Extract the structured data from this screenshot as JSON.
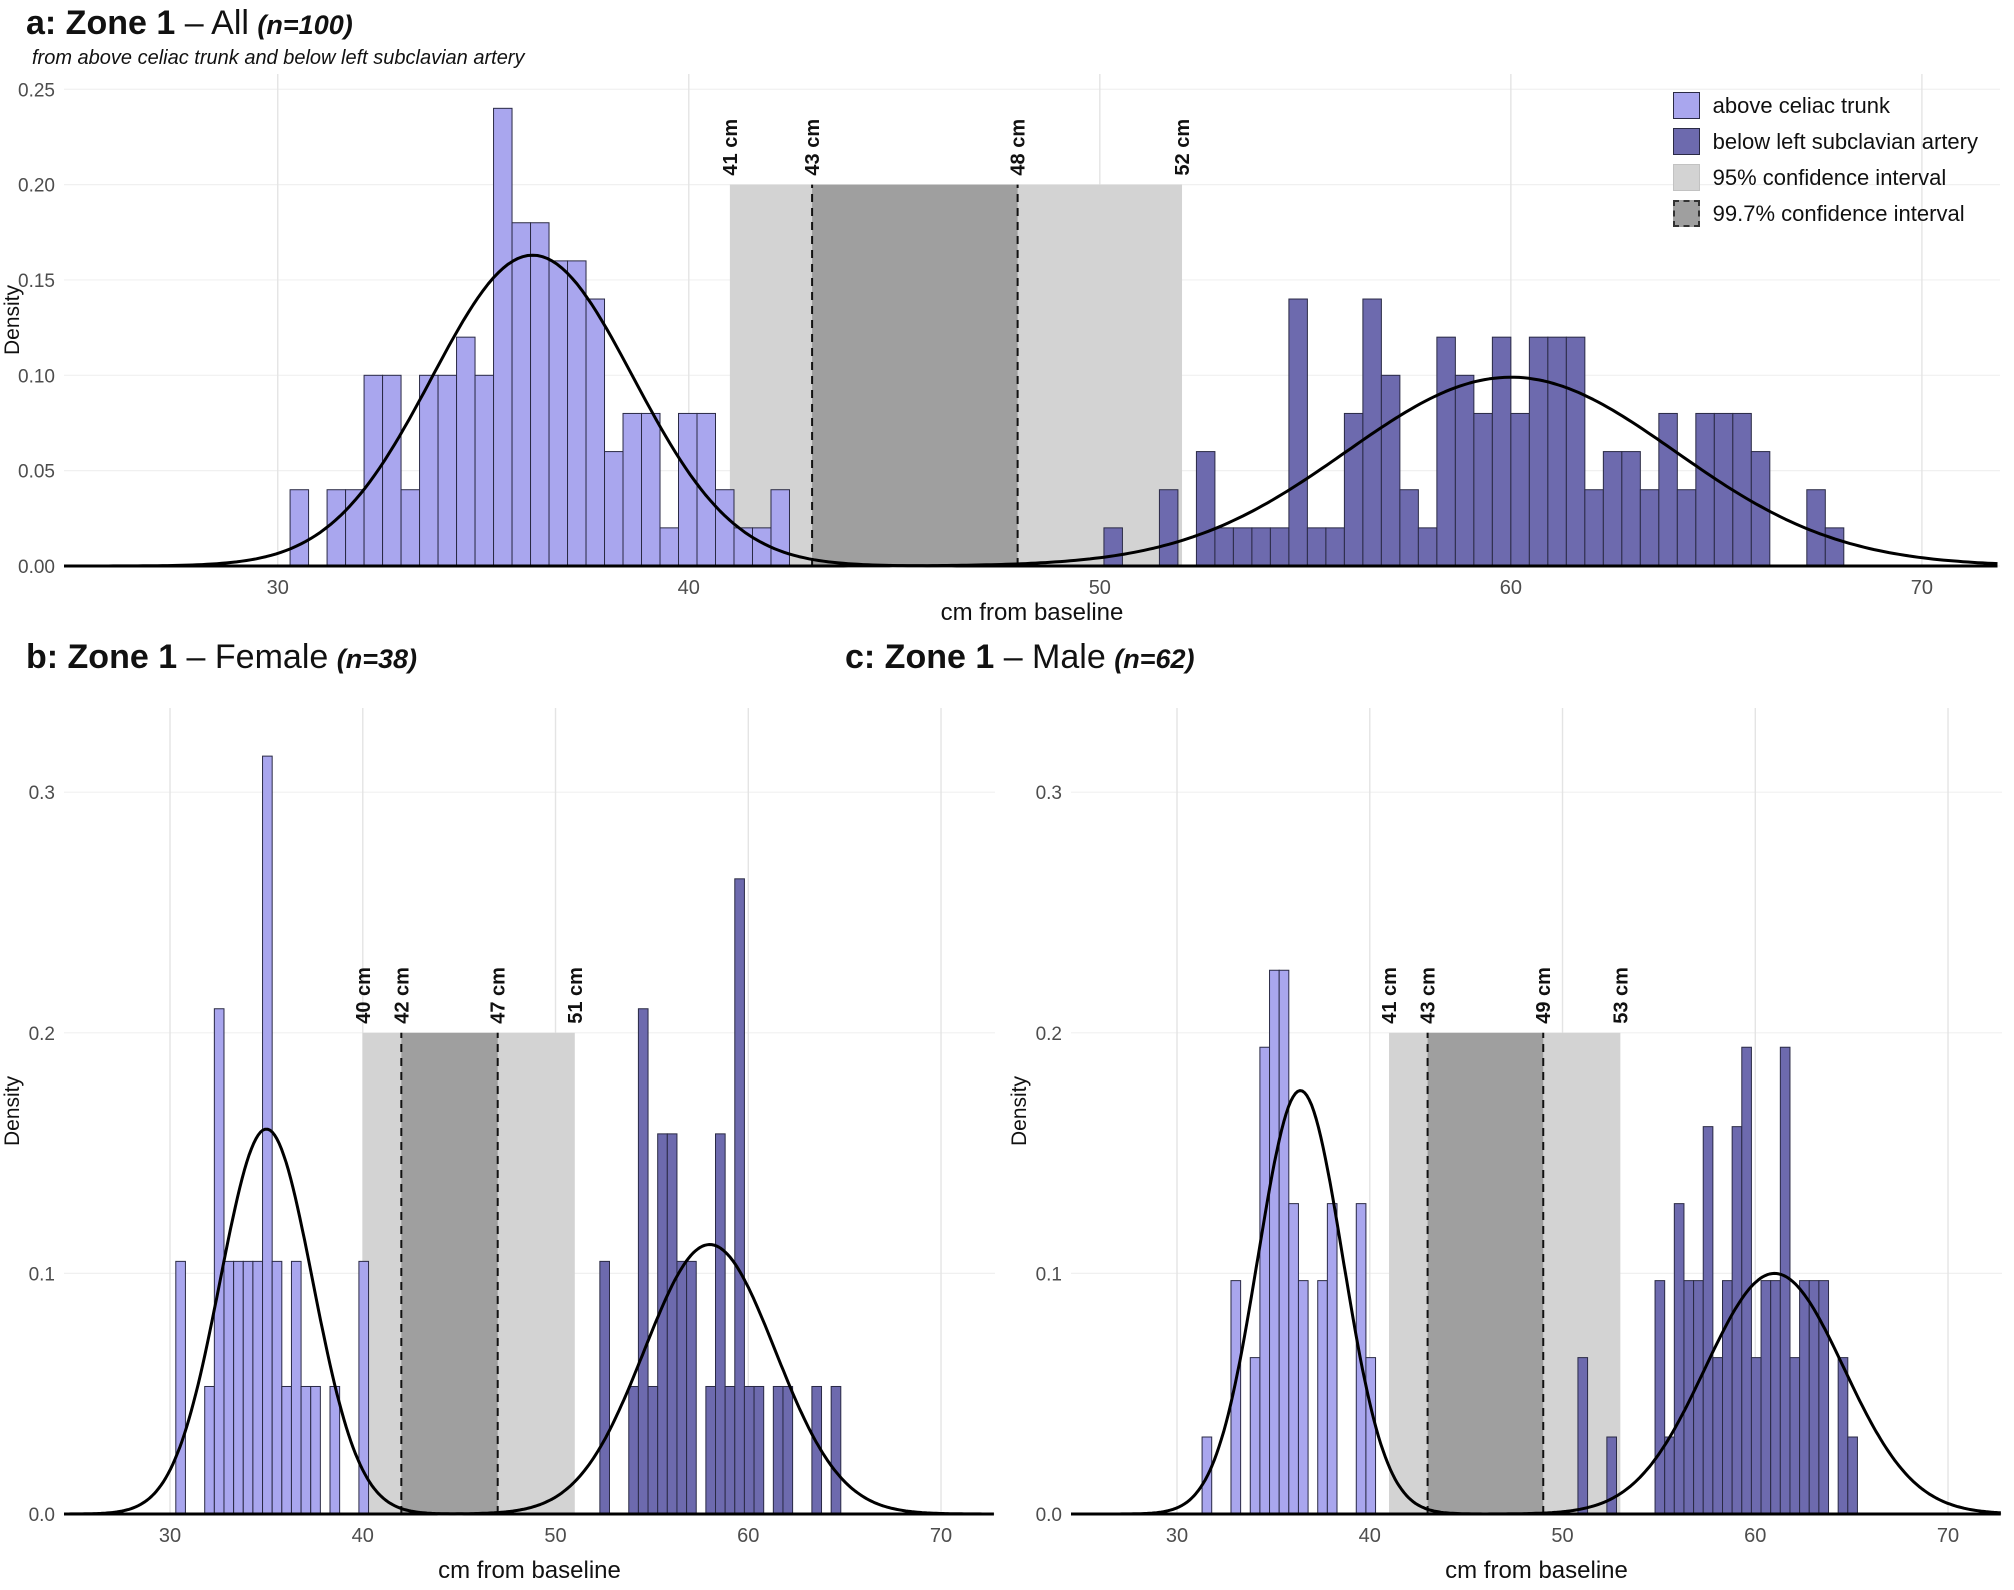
{
  "page": {
    "background": "#ffffff"
  },
  "panels": {
    "a": {
      "title_bold": "a: Zone 1",
      "title_rest": " – All",
      "title_n": "(n=100)",
      "subtitle": "from above celiac trunk and below left subclavian artery"
    },
    "b": {
      "title_bold": "b: Zone 1",
      "title_rest": " – Female",
      "title_n": "(n=38)"
    },
    "c": {
      "title_bold": "c: Zone 1",
      "title_rest": " – Male",
      "title_n": "(n=62)"
    }
  },
  "legend": {
    "items": [
      {
        "label": "above celiac trunk",
        "swatch": "light-purple"
      },
      {
        "label": "below left subclavian artery",
        "swatch": "dark-purple"
      },
      {
        "label": "95% confidence interval",
        "swatch": "gray-95"
      },
      {
        "label": "99.7% confidence interval",
        "swatch": "gray-997"
      }
    ]
  },
  "colors": {
    "light_series_fill": "#a9a6ee",
    "dark_series_fill": "#6d6aae",
    "bar_border": "#2a2a45",
    "ci95_fill": "#d3d3d3",
    "ci997_fill": "#9f9f9f",
    "curve": "#000000",
    "grid_v": "#e4e4e4",
    "grid_h": "#f0f0f0",
    "axis_text": "#4d4d4d",
    "text": "#111111"
  },
  "chart_data": [
    {
      "panel": "a",
      "type": "bar",
      "title": "a: Zone 1 – All (n=100)",
      "xlabel": "cm from baseline",
      "ylabel": "Density",
      "xlim": [
        24.8,
        71.9
      ],
      "ylim": [
        0,
        0.258
      ],
      "xticks": [
        30,
        40,
        50,
        60,
        70
      ],
      "yticks": [
        0,
        0.05,
        0.1,
        0.15,
        0.2,
        0.25
      ],
      "ytick_labels": [
        "0.00",
        "0.05",
        "0.10",
        "0.15",
        "0.20",
        "0.25"
      ],
      "band_top": 0.2,
      "ci95": [
        41,
        52
      ],
      "ci997": [
        43,
        48
      ],
      "ci_labels": [
        "41 cm",
        "43 cm",
        "48 cm",
        "52 cm"
      ],
      "bin_width": 0.45,
      "series": [
        {
          "name": "above celiac trunk",
          "color_key": "light",
          "curve": {
            "mean": 36.2,
            "sd": 2.45,
            "peak": 0.163
          },
          "bars": [
            [
              30.3,
              0.04
            ],
            [
              31.2,
              0.04
            ],
            [
              31.65,
              0.04
            ],
            [
              32.1,
              0.1
            ],
            [
              32.55,
              0.1
            ],
            [
              33.0,
              0.04
            ],
            [
              33.45,
              0.1
            ],
            [
              33.9,
              0.1
            ],
            [
              34.35,
              0.12
            ],
            [
              34.8,
              0.1
            ],
            [
              35.25,
              0.24
            ],
            [
              35.7,
              0.18
            ],
            [
              36.15,
              0.18
            ],
            [
              36.6,
              0.16
            ],
            [
              37.05,
              0.16
            ],
            [
              37.5,
              0.14
            ],
            [
              37.95,
              0.06
            ],
            [
              38.4,
              0.08
            ],
            [
              38.85,
              0.08
            ],
            [
              39.3,
              0.02
            ],
            [
              39.75,
              0.08
            ],
            [
              40.2,
              0.08
            ],
            [
              40.65,
              0.04
            ],
            [
              41.1,
              0.02
            ],
            [
              41.55,
              0.02
            ],
            [
              42.0,
              0.04
            ]
          ]
        },
        {
          "name": "below left subclavian artery",
          "color_key": "dark",
          "curve": {
            "mean": 60.0,
            "sd": 4.0,
            "peak": 0.099
          },
          "bars": [
            [
              50.1,
              0.02
            ],
            [
              51.45,
              0.04
            ],
            [
              52.35,
              0.06
            ],
            [
              52.8,
              0.02
            ],
            [
              53.25,
              0.02
            ],
            [
              53.7,
              0.02
            ],
            [
              54.15,
              0.02
            ],
            [
              54.6,
              0.14
            ],
            [
              55.05,
              0.02
            ],
            [
              55.5,
              0.02
            ],
            [
              55.95,
              0.08
            ],
            [
              56.4,
              0.14
            ],
            [
              56.85,
              0.1
            ],
            [
              57.3,
              0.04
            ],
            [
              57.75,
              0.02
            ],
            [
              58.2,
              0.12
            ],
            [
              58.65,
              0.1
            ],
            [
              59.1,
              0.08
            ],
            [
              59.55,
              0.12
            ],
            [
              60.0,
              0.08
            ],
            [
              60.45,
              0.12
            ],
            [
              60.9,
              0.12
            ],
            [
              61.35,
              0.12
            ],
            [
              61.8,
              0.04
            ],
            [
              62.25,
              0.06
            ],
            [
              62.7,
              0.06
            ],
            [
              63.15,
              0.04
            ],
            [
              63.6,
              0.08
            ],
            [
              64.05,
              0.04
            ],
            [
              64.5,
              0.08
            ],
            [
              64.95,
              0.08
            ],
            [
              65.4,
              0.08
            ],
            [
              65.85,
              0.06
            ],
            [
              67.2,
              0.04
            ],
            [
              67.65,
              0.02
            ]
          ]
        }
      ]
    },
    {
      "panel": "b",
      "type": "bar",
      "title": "b: Zone 1 – Female (n=38)",
      "xlabel": "cm from baseline",
      "ylabel": "Density",
      "xlim": [
        24.5,
        72.8
      ],
      "ylim": [
        0,
        0.335
      ],
      "xticks": [
        30,
        40,
        50,
        60,
        70
      ],
      "yticks": [
        0,
        0.1,
        0.2,
        0.3
      ],
      "ytick_labels": [
        "0.0",
        "0.1",
        "0.2",
        "0.3"
      ],
      "band_top": 0.2,
      "ci95": [
        40,
        51
      ],
      "ci997": [
        42,
        47
      ],
      "ci_labels": [
        "40 cm",
        "42 cm",
        "47 cm",
        "51 cm"
      ],
      "bin_width": 0.5,
      "series": [
        {
          "name": "above celiac trunk",
          "color_key": "light",
          "curve": {
            "mean": 35.0,
            "sd": 2.4,
            "peak": 0.16
          },
          "bars": [
            [
              30.3,
              0.105
            ],
            [
              31.8,
              0.053
            ],
            [
              32.3,
              0.21
            ],
            [
              32.8,
              0.105
            ],
            [
              33.3,
              0.105
            ],
            [
              33.8,
              0.105
            ],
            [
              34.3,
              0.105
            ],
            [
              34.8,
              0.315
            ],
            [
              35.3,
              0.105
            ],
            [
              35.8,
              0.053
            ],
            [
              36.3,
              0.105
            ],
            [
              36.8,
              0.053
            ],
            [
              37.3,
              0.053
            ],
            [
              38.3,
              0.053
            ],
            [
              39.8,
              0.105
            ]
          ]
        },
        {
          "name": "below left subclavian artery",
          "color_key": "dark",
          "curve": {
            "mean": 58.0,
            "sd": 3.4,
            "peak": 0.112
          },
          "bars": [
            [
              52.3,
              0.105
            ],
            [
              53.8,
              0.053
            ],
            [
              54.3,
              0.21
            ],
            [
              54.8,
              0.053
            ],
            [
              55.3,
              0.158
            ],
            [
              55.8,
              0.158
            ],
            [
              56.3,
              0.105
            ],
            [
              56.8,
              0.105
            ],
            [
              57.8,
              0.053
            ],
            [
              58.3,
              0.158
            ],
            [
              58.8,
              0.053
            ],
            [
              59.3,
              0.264
            ],
            [
              59.8,
              0.053
            ],
            [
              60.3,
              0.053
            ],
            [
              61.3,
              0.053
            ],
            [
              61.8,
              0.053
            ],
            [
              63.3,
              0.053
            ],
            [
              64.3,
              0.053
            ]
          ]
        }
      ]
    },
    {
      "panel": "c",
      "type": "bar",
      "title": "c: Zone 1 – Male (n=62)",
      "xlabel": "cm from baseline",
      "ylabel": "Density",
      "xlim": [
        24.5,
        72.8
      ],
      "ylim": [
        0,
        0.335
      ],
      "xticks": [
        30,
        40,
        50,
        60,
        70
      ],
      "yticks": [
        0,
        0.1,
        0.2,
        0.3
      ],
      "ytick_labels": [
        "0.0",
        "0.1",
        "0.2",
        "0.3"
      ],
      "band_top": 0.2,
      "ci95": [
        41,
        53
      ],
      "ci997": [
        43,
        49
      ],
      "ci_labels": [
        "41 cm",
        "43 cm",
        "49 cm",
        "53 cm"
      ],
      "bin_width": 0.5,
      "series": [
        {
          "name": "above celiac trunk",
          "color_key": "light",
          "curve": {
            "mean": 36.4,
            "sd": 2.2,
            "peak": 0.176
          },
          "bars": [
            [
              31.3,
              0.032
            ],
            [
              32.8,
              0.097
            ],
            [
              33.8,
              0.065
            ],
            [
              34.3,
              0.194
            ],
            [
              34.8,
              0.226
            ],
            [
              35.3,
              0.226
            ],
            [
              35.8,
              0.129
            ],
            [
              36.3,
              0.097
            ],
            [
              37.3,
              0.097
            ],
            [
              37.8,
              0.129
            ],
            [
              39.3,
              0.129
            ],
            [
              39.8,
              0.065
            ]
          ]
        },
        {
          "name": "below left subclavian artery",
          "color_key": "dark",
          "curve": {
            "mean": 61.0,
            "sd": 3.6,
            "peak": 0.1
          },
          "bars": [
            [
              50.8,
              0.065
            ],
            [
              52.3,
              0.032
            ],
            [
              54.8,
              0.097
            ],
            [
              55.3,
              0.032
            ],
            [
              55.8,
              0.129
            ],
            [
              56.3,
              0.097
            ],
            [
              56.8,
              0.097
            ],
            [
              57.3,
              0.161
            ],
            [
              57.8,
              0.065
            ],
            [
              58.3,
              0.097
            ],
            [
              58.8,
              0.161
            ],
            [
              59.3,
              0.194
            ],
            [
              59.8,
              0.065
            ],
            [
              60.3,
              0.097
            ],
            [
              60.8,
              0.097
            ],
            [
              61.3,
              0.194
            ],
            [
              61.8,
              0.065
            ],
            [
              62.3,
              0.097
            ],
            [
              62.8,
              0.097
            ],
            [
              63.3,
              0.097
            ],
            [
              64.3,
              0.065
            ],
            [
              64.8,
              0.032
            ]
          ]
        }
      ]
    }
  ]
}
